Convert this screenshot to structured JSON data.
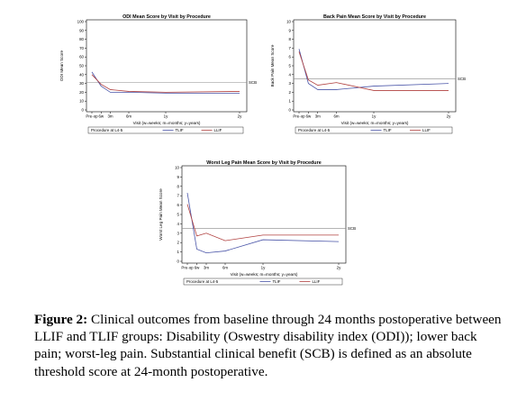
{
  "chart_data": [
    {
      "id": "odi",
      "type": "line",
      "title": "ODI Mean Score by Visit by Procedure",
      "xlabel": "Visit (w=weeks; m=months; y=years)",
      "ylabel": "ODI Mean Score",
      "ylim": [
        0,
        100
      ],
      "yticks": [
        0,
        10,
        20,
        30,
        40,
        50,
        60,
        70,
        80,
        90,
        100
      ],
      "x_ticks": [
        {
          "label": "Pre-op",
          "x": 0
        },
        {
          "label": "6w",
          "x": 1.5
        },
        {
          "label": "3m",
          "x": 3
        },
        {
          "label": "6m",
          "x": 6
        },
        {
          "label": "1y",
          "x": 12
        },
        {
          "label": "2y",
          "x": 24
        }
      ],
      "xlim": [
        0,
        24
      ],
      "series": [
        {
          "name": "TLIF",
          "color": "#4a55a8",
          "x": [
            0,
            1.5,
            3,
            6,
            12,
            24
          ],
          "values": [
            43,
            27,
            20,
            20,
            19,
            19
          ]
        },
        {
          "name": "LLIF",
          "color": "#b0403f",
          "x": [
            0,
            1.5,
            3,
            6,
            12,
            24
          ],
          "values": [
            40,
            29,
            23,
            21,
            20,
            21
          ]
        }
      ],
      "scb": {
        "value": 31,
        "label": "SCB",
        "color": "#888888"
      },
      "legend": {
        "title": "Procedure at L4-5",
        "placement": "bottom"
      }
    },
    {
      "id": "back",
      "type": "line",
      "title": "Back Pain Mean Score by Visit by Procedure",
      "xlabel": "Visit (w=weeks; m=months; y=years)",
      "ylabel": "Back Pain Mean Score",
      "ylim": [
        0,
        10
      ],
      "yticks": [
        0,
        1,
        2,
        3,
        4,
        5,
        6,
        7,
        8,
        9,
        10
      ],
      "x_ticks": [
        {
          "label": "Pre-op",
          "x": 0
        },
        {
          "label": "6w",
          "x": 1.5
        },
        {
          "label": "3m",
          "x": 3
        },
        {
          "label": "6m",
          "x": 6
        },
        {
          "label": "1y",
          "x": 12
        },
        {
          "label": "2y",
          "x": 24
        }
      ],
      "xlim": [
        0,
        24
      ],
      "series": [
        {
          "name": "TLIF",
          "color": "#4a55a8",
          "x": [
            0,
            1.5,
            3,
            6,
            12,
            24
          ],
          "values": [
            6.9,
            3.0,
            2.3,
            2.3,
            2.7,
            3.0
          ]
        },
        {
          "name": "LLIF",
          "color": "#b0403f",
          "x": [
            0,
            1.5,
            3,
            6,
            12,
            24
          ],
          "values": [
            6.6,
            3.4,
            2.8,
            3.1,
            2.2,
            2.2
          ]
        }
      ],
      "scb": {
        "value": 3.5,
        "label": "SCB",
        "color": "#888888"
      },
      "legend": {
        "title": "Procedure at L4-5",
        "placement": "bottom"
      }
    },
    {
      "id": "leg",
      "type": "line",
      "title": "Worst Leg Pain Mean Score by Visit by Procedure",
      "xlabel": "Visit (w=weeks; m=months; y=years)",
      "ylabel": "Worst Leg Pain Mean Score",
      "ylim": [
        0,
        10
      ],
      "yticks": [
        0,
        1,
        2,
        3,
        4,
        5,
        6,
        7,
        8,
        9,
        10
      ],
      "x_ticks": [
        {
          "label": "Pre-op",
          "x": 0
        },
        {
          "label": "6w",
          "x": 1.5
        },
        {
          "label": "3m",
          "x": 3
        },
        {
          "label": "6m",
          "x": 6
        },
        {
          "label": "1y",
          "x": 12
        },
        {
          "label": "2y",
          "x": 24
        }
      ],
      "xlim": [
        0,
        24
      ],
      "series": [
        {
          "name": "TLIF",
          "color": "#4a55a8",
          "x": [
            0,
            1.5,
            3,
            6,
            12,
            24
          ],
          "values": [
            7.3,
            1.3,
            0.9,
            1.1,
            2.3,
            2.1
          ]
        },
        {
          "name": "LLIF",
          "color": "#b0403f",
          "x": [
            0,
            1.5,
            3,
            6,
            12,
            24
          ],
          "values": [
            6.1,
            2.7,
            3.0,
            2.2,
            2.8,
            2.8
          ]
        }
      ],
      "scb": {
        "value": 3.5,
        "label": "SCB",
        "color": "#888888"
      },
      "legend": {
        "title": "Procedure at L4-5",
        "placement": "bottom"
      }
    }
  ],
  "caption": {
    "label": "Figure 2:",
    "text": " Clinical outcomes from baseline through 24 months postoperative between LLIF and TLIF groups: Disability (Oswestry disability index (ODI)); lower back pain; worst-leg pain. Substantial clinical benefit (SCB) is defined as an absolute threshold score at 24-month postoperative."
  }
}
